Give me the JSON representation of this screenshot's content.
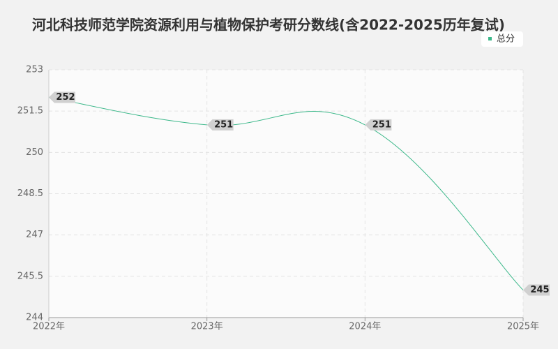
{
  "chart_data": {
    "type": "line",
    "title": "河北科技师范学院资源利用与植物保护考研分数线(含2022-2025历年复试)",
    "categories": [
      "2022年",
      "2023年",
      "2024年",
      "2025年"
    ],
    "series": [
      {
        "name": "总分",
        "color": "#3cb88a",
        "values": [
          252,
          251,
          251,
          245
        ]
      }
    ],
    "ylim": [
      244,
      253
    ],
    "yticks": [
      244,
      245.5,
      247,
      248.5,
      250,
      251.5,
      253
    ],
    "grid": true,
    "legend": "top-right"
  }
}
